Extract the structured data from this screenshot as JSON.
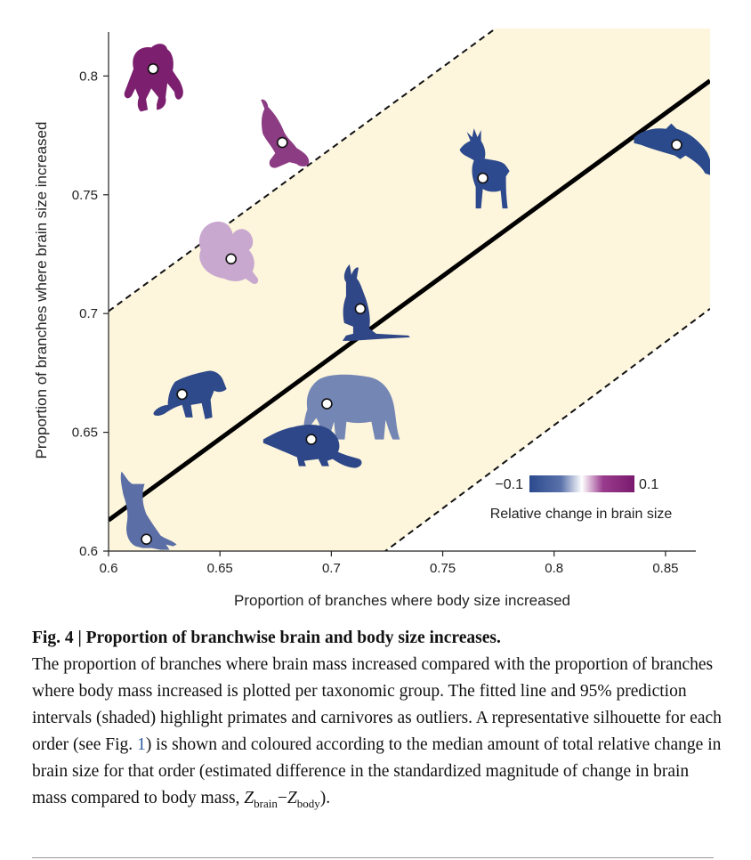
{
  "chart_data": {
    "type": "scatter",
    "xlabel": "Proportion of branches where body size increased",
    "ylabel": "Proportion of branches where brain size increased",
    "xlim": [
      0.6,
      0.87
    ],
    "ylim": [
      0.6,
      0.82
    ],
    "x_ticks": [
      0.6,
      0.65,
      0.7,
      0.75,
      0.8,
      0.85
    ],
    "y_ticks": [
      0.6,
      0.65,
      0.7,
      0.75,
      0.8
    ],
    "x_tick_labels": [
      "0.6",
      "0.65",
      "0.7",
      "0.75",
      "0.8",
      "0.85"
    ],
    "y_tick_labels": [
      "0.6",
      "0.65",
      "0.7",
      "0.75",
      "0.8"
    ],
    "fit_line": {
      "x": [
        0.6,
        0.87
      ],
      "y": [
        0.613,
        0.798
      ]
    },
    "prediction_interval": {
      "upper": {
        "x": [
          0.6,
          0.87
        ],
        "y": [
          0.701,
          0.886
        ]
      },
      "lower": {
        "x": [
          0.6,
          0.87
        ],
        "y": [
          0.513,
          0.702
        ]
      }
    },
    "points": [
      {
        "group": "primate",
        "silhouette": "ape",
        "x": 0.62,
        "y": 0.803,
        "color": "#7b1f6e"
      },
      {
        "group": "carnivore",
        "silhouette": "weasel",
        "x": 0.678,
        "y": 0.772,
        "color": "#8c3c83"
      },
      {
        "group": "ungulate",
        "silhouette": "deer",
        "x": 0.768,
        "y": 0.757,
        "color": "#2e4a8e"
      },
      {
        "group": "cetacean",
        "silhouette": "dolphin",
        "x": 0.855,
        "y": 0.771,
        "color": "#2b4a8b"
      },
      {
        "group": "rodent",
        "silhouette": "squirrel",
        "x": 0.655,
        "y": 0.723,
        "color": "#c8a8cf"
      },
      {
        "group": "marsupial",
        "silhouette": "kangaroo",
        "x": 0.713,
        "y": 0.702,
        "color": "#2f4687"
      },
      {
        "group": "dasyuromorph",
        "silhouette": "devil",
        "x": 0.633,
        "y": 0.666,
        "color": "#2f4a8a"
      },
      {
        "group": "proboscidean",
        "silhouette": "elephant",
        "x": 0.698,
        "y": 0.662,
        "color": "#7486b4"
      },
      {
        "group": "eulipotyphlan",
        "silhouette": "shrew",
        "x": 0.691,
        "y": 0.647,
        "color": "#2e4788"
      },
      {
        "group": "bat",
        "silhouette": "bat",
        "x": 0.617,
        "y": 0.605,
        "color": "#5b6fa6"
      }
    ],
    "legend": {
      "min_label": "−0.1",
      "max_label": "0.1",
      "title": "Relative change in brain size",
      "colors": [
        "#2b4a8e",
        "#5a72aa",
        "#ffffff",
        "#9a3c8e",
        "#7a1a6e"
      ]
    }
  },
  "caption": {
    "title": "Fig. 4 | Proportion of branchwise brain and body size increases.",
    "body_before": "The proportion of branches where brain mass increased compared with the proportion of branches where body mass increased is plotted per taxonomic group. The fitted line and 95% prediction intervals (shaded) highlight primates and carnivores as outliers. A representative silhouette for each order (see Fig. ",
    "fig_ref": "1",
    "body_after": ") is shown and coloured according to the median amount of total relative change in brain size for that order (estimated difference in the standardized magnitude of change in brain mass compared to body mass, ",
    "z_symbol": "Z",
    "z_brain_sub": "brain",
    "minus": "−",
    "z_body_sub": "body",
    "ending": ")."
  }
}
